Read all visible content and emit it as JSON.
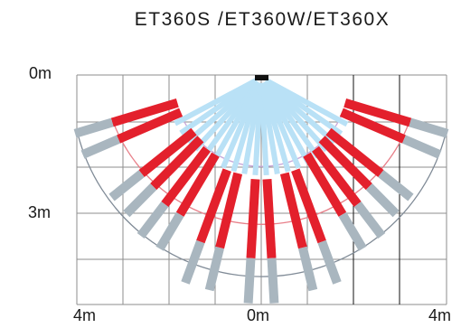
{
  "title": "ET360S /ET360W/ET360X",
  "labels": {
    "top_left_distance": "0m",
    "middle_left_distance": "3m",
    "bottom_left_distance": "4m",
    "bottom_center_distance": "0m",
    "bottom_right_distance": "4m"
  },
  "zones": {
    "colors": {
      "outer": "#a9b6bf",
      "middle": "#e3202c",
      "inner": "#b9e1f6",
      "outer_arc": "#7f8a96",
      "middle_arc": "#e8808a",
      "inner_arc": "#c7a7d9",
      "grid": "#8d8d8d",
      "sensor": "#111111"
    }
  }
}
